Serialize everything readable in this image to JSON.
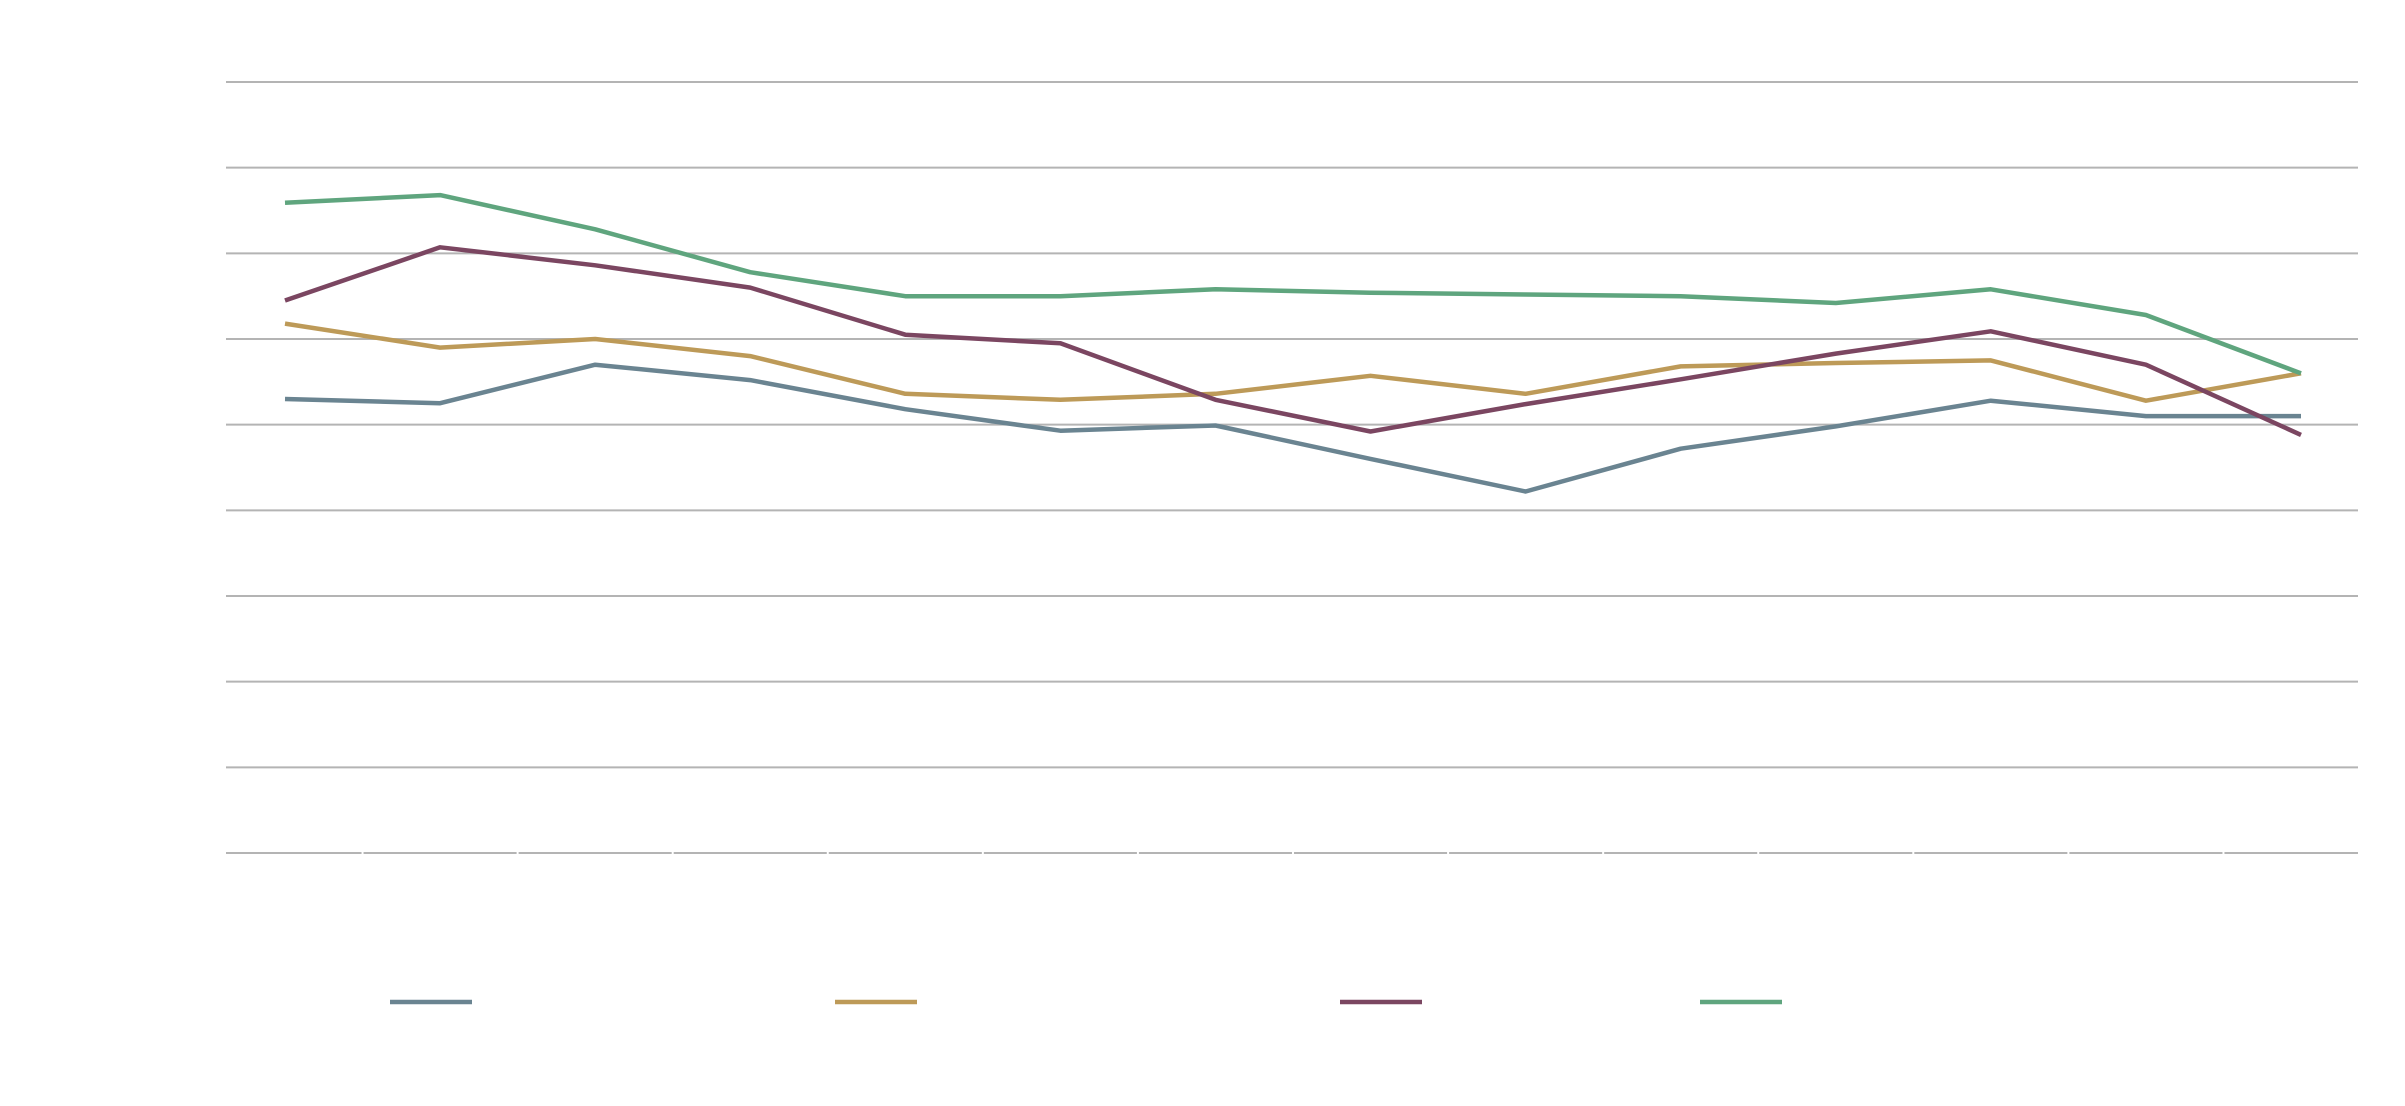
{
  "chart_data": {
    "type": "line",
    "title": "",
    "xlabel": "",
    "ylabel": "",
    "ylim": [
      0,
      9
    ],
    "grid": true,
    "legend_position": "bottom",
    "categories": [
      "",
      "",
      "",
      "",
      "",
      "",
      "",
      "",
      "",
      "",
      "",
      "",
      "",
      ""
    ],
    "series": [
      {
        "color": "#6a8491",
        "values": [
          5.3,
          5.25,
          5.7,
          5.52,
          5.18,
          4.93,
          4.99,
          4.6,
          4.22,
          4.72,
          4.98,
          5.28,
          5.1,
          5.1
        ]
      },
      {
        "color": "#bd9a58",
        "values": [
          6.18,
          5.9,
          6.0,
          5.8,
          5.36,
          5.29,
          5.36,
          5.57,
          5.36,
          5.68,
          5.72,
          5.75,
          5.28,
          5.6
        ]
      },
      {
        "color": "#7b4661",
        "values": [
          6.45,
          7.07,
          6.86,
          6.6,
          6.05,
          5.95,
          5.29,
          4.92,
          5.24,
          5.53,
          5.83,
          6.09,
          5.7,
          4.88
        ]
      },
      {
        "color": "#5fa57e",
        "values": [
          7.59,
          7.68,
          7.28,
          6.78,
          6.5,
          6.5,
          6.58,
          6.54,
          6.52,
          6.5,
          6.42,
          6.58,
          6.28,
          5.6
        ]
      }
    ]
  }
}
